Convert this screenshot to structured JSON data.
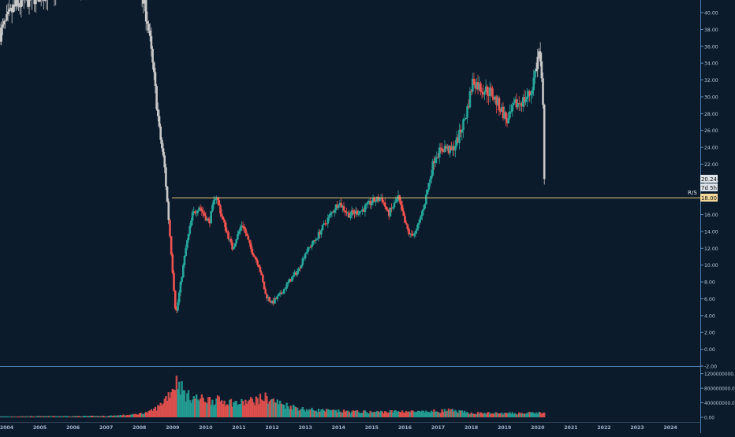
{
  "colors": {
    "background": "#0c1b2b",
    "up": "#26a69a",
    "down": "#ef5350",
    "neutral_candle": "#c8c8c8",
    "axis_text": "#b8c4d6",
    "year_text": "#9fb4cc",
    "level_line": "#e7c77a",
    "axis_line": "#5d8fc0"
  },
  "price_tags": {
    "last_price": "20.24",
    "countdown": "7d 5h",
    "level_label": "R/S",
    "level_value": "18.00"
  },
  "chart_data": {
    "type": "candlestick",
    "price_axis": {
      "ticks": [
        "40.00",
        "38.00",
        "36.00",
        "34.00",
        "32.00",
        "30.00",
        "28.00",
        "26.00",
        "24.00",
        "22.00",
        "20.00",
        "18.00",
        "16.00",
        "14.00",
        "12.00",
        "10.00",
        "8.00",
        "6.00",
        "4.00",
        "2.00",
        "0.00",
        "-2.00"
      ],
      "ylim": [
        -2,
        41.5
      ]
    },
    "volume_axis": {
      "ticks": [
        "1200000000.00",
        "800000000.00",
        "400000000.00",
        "0.00"
      ],
      "ylim": [
        0,
        1300000000
      ]
    },
    "time_axis": {
      "labels": [
        "2004",
        "2005",
        "2006",
        "2007",
        "2008",
        "2009",
        "2010",
        "2011",
        "2012",
        "2013",
        "2014",
        "2015",
        "2016",
        "2017",
        "2018",
        "2019",
        "2020",
        "2021",
        "2022",
        "2023",
        "2024"
      ],
      "range": [
        2003.8,
        2024.9
      ]
    },
    "support_resistance_level": 18.0,
    "last_price": 20.24,
    "price_path": [
      [
        2003.8,
        37.5
      ],
      [
        2004.2,
        40.5
      ],
      [
        2004.6,
        41.5
      ],
      [
        2005.5,
        43
      ],
      [
        2006.5,
        44
      ],
      [
        2007.5,
        45
      ],
      [
        2007.8,
        44
      ],
      [
        2008.05,
        42.5
      ],
      [
        2008.25,
        39
      ],
      [
        2008.45,
        32
      ],
      [
        2008.6,
        26
      ],
      [
        2008.75,
        22
      ],
      [
        2008.85,
        17
      ],
      [
        2008.95,
        12
      ],
      [
        2009.1,
        4
      ],
      [
        2009.25,
        8
      ],
      [
        2009.4,
        12
      ],
      [
        2009.6,
        16
      ],
      [
        2009.8,
        17
      ],
      [
        2010.1,
        15
      ],
      [
        2010.3,
        18.5
      ],
      [
        2010.5,
        15.5
      ],
      [
        2010.8,
        12
      ],
      [
        2011.1,
        15
      ],
      [
        2011.35,
        12
      ],
      [
        2011.6,
        10
      ],
      [
        2011.8,
        6.5
      ],
      [
        2012.0,
        5.5
      ],
      [
        2012.25,
        6.5
      ],
      [
        2012.5,
        8
      ],
      [
        2012.8,
        9.5
      ],
      [
        2013.0,
        11.5
      ],
      [
        2013.3,
        13
      ],
      [
        2013.6,
        15
      ],
      [
        2014.0,
        17.5
      ],
      [
        2014.3,
        16
      ],
      [
        2014.7,
        16.5
      ],
      [
        2015.0,
        17.5
      ],
      [
        2015.3,
        18
      ],
      [
        2015.5,
        16
      ],
      [
        2015.8,
        18
      ],
      [
        2016.0,
        15
      ],
      [
        2016.15,
        13.5
      ],
      [
        2016.35,
        14
      ],
      [
        2016.6,
        17.5
      ],
      [
        2016.9,
        23
      ],
      [
        2017.2,
        24
      ],
      [
        2017.4,
        23.5
      ],
      [
        2017.6,
        25
      ],
      [
        2017.85,
        28
      ],
      [
        2018.05,
        32
      ],
      [
        2018.3,
        31
      ],
      [
        2018.6,
        30.5
      ],
      [
        2018.9,
        28.5
      ],
      [
        2019.1,
        27
      ],
      [
        2019.3,
        29
      ],
      [
        2019.55,
        29.5
      ],
      [
        2019.8,
        30.5
      ],
      [
        2019.95,
        33.5
      ],
      [
        2020.05,
        35.5
      ],
      [
        2020.15,
        30
      ],
      [
        2020.22,
        20.24
      ]
    ],
    "volume_profile": [
      [
        2004,
        0.02
      ],
      [
        2007.0,
        0.03
      ],
      [
        2007.8,
        0.06
      ],
      [
        2008.3,
        0.12
      ],
      [
        2008.6,
        0.25
      ],
      [
        2008.9,
        0.55
      ],
      [
        2009.15,
        0.85
      ],
      [
        2009.4,
        0.5
      ],
      [
        2009.8,
        0.42
      ],
      [
        2010.5,
        0.38
      ],
      [
        2011.0,
        0.32
      ],
      [
        2011.4,
        0.38
      ],
      [
        2011.8,
        0.45
      ],
      [
        2012.3,
        0.3
      ],
      [
        2013.0,
        0.18
      ],
      [
        2014.0,
        0.14
      ],
      [
        2015.0,
        0.12
      ],
      [
        2016.0,
        0.14
      ],
      [
        2016.5,
        0.12
      ],
      [
        2017.3,
        0.16
      ],
      [
        2018.0,
        0.1
      ],
      [
        2019.0,
        0.09
      ],
      [
        2020.0,
        0.1
      ],
      [
        2020.22,
        0.12
      ]
    ]
  }
}
